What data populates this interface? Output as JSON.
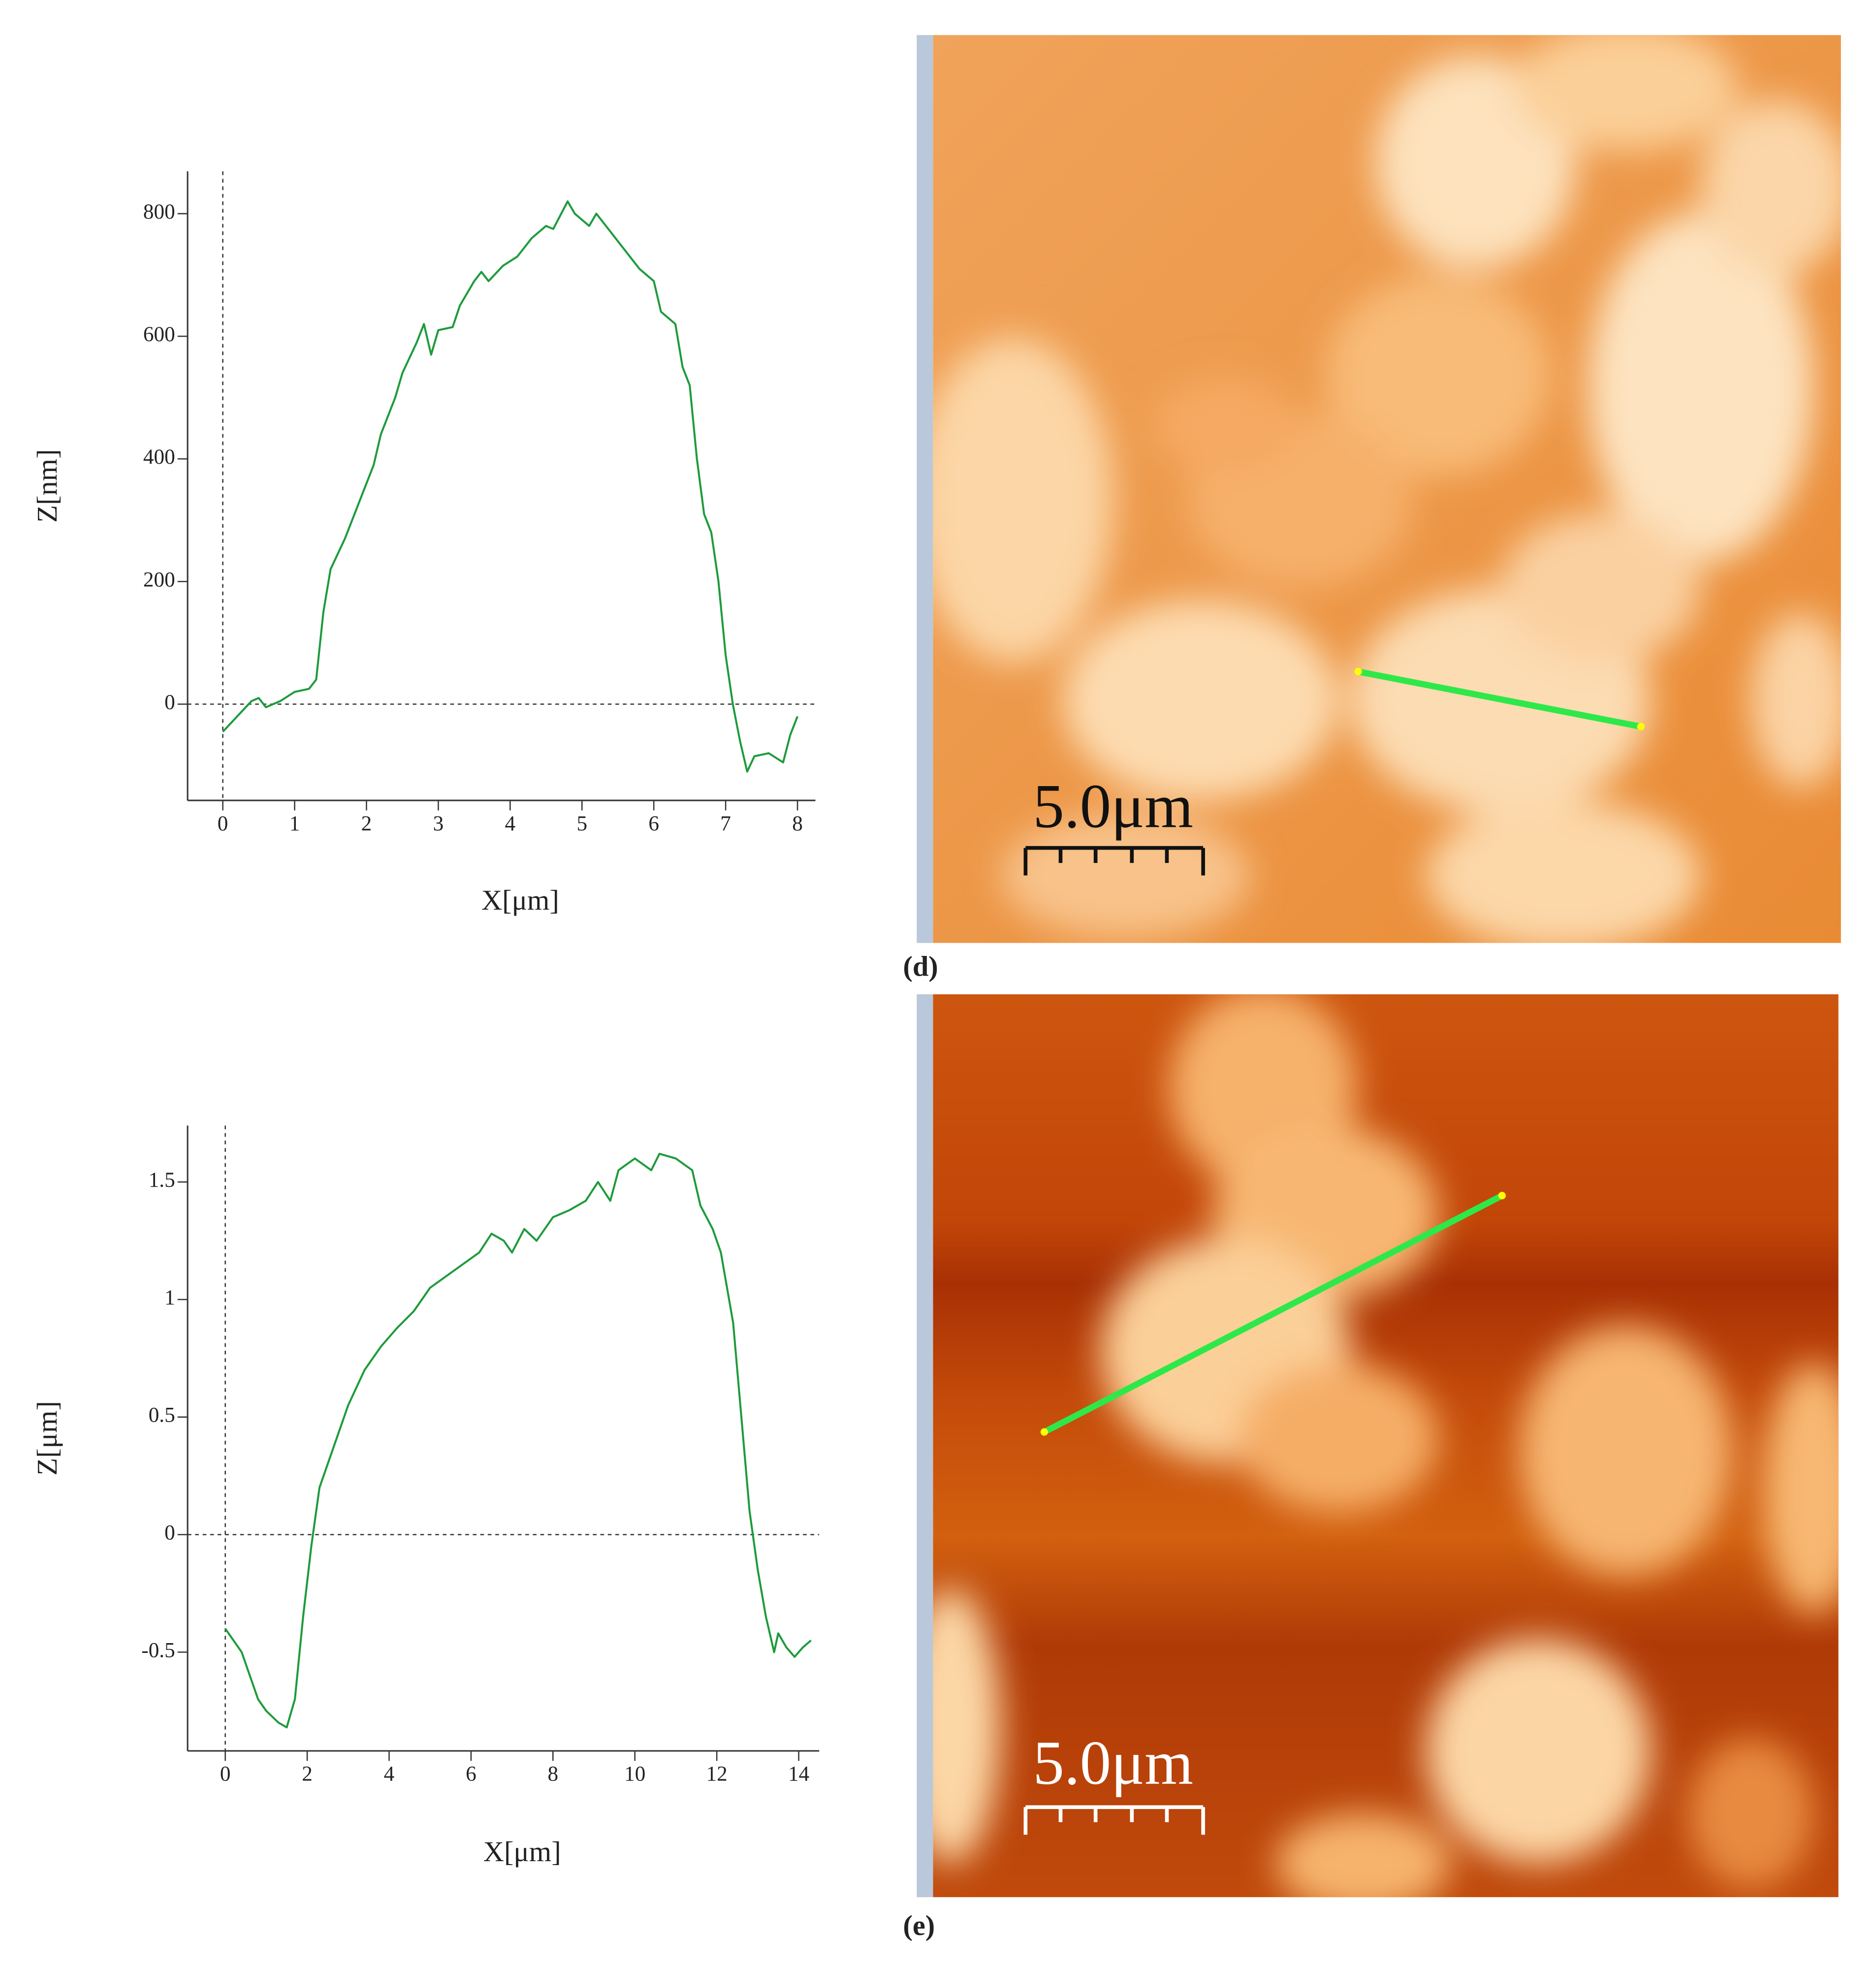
{
  "chart_data": [
    {
      "type": "line",
      "xlabel": "X[μm]",
      "ylabel": "Z[nm]",
      "xlim": [
        -0.49,
        8.25
      ],
      "ylim": [
        -157,
        869
      ],
      "xticks": [
        0,
        1,
        2,
        3,
        4,
        5,
        6,
        7,
        8
      ],
      "yticks": [
        0,
        200,
        400,
        600,
        800
      ],
      "origin_lines": true,
      "x": [
        0,
        0.2,
        0.4,
        0.5,
        0.6,
        0.8,
        1.0,
        1.2,
        1.3,
        1.4,
        1.5,
        1.7,
        1.9,
        2.1,
        2.2,
        2.4,
        2.5,
        2.7,
        2.8,
        2.9,
        3.0,
        3.2,
        3.3,
        3.5,
        3.6,
        3.7,
        3.9,
        4.1,
        4.3,
        4.5,
        4.6,
        4.8,
        4.9,
        5.1,
        5.2,
        5.4,
        5.6,
        5.8,
        6.0,
        6.1,
        6.3,
        6.4,
        6.5,
        6.6,
        6.7,
        6.8,
        6.9,
        7.0,
        7.1,
        7.2,
        7.3,
        7.4,
        7.6,
        7.8,
        7.9,
        8.0
      ],
      "series": [
        {
          "color": "#1e9b3c",
          "values": [
            -45,
            -20,
            5,
            10,
            -5,
            5,
            20,
            25,
            40,
            150,
            220,
            270,
            330,
            390,
            440,
            500,
            540,
            590,
            620,
            570,
            610,
            615,
            650,
            690,
            705,
            690,
            715,
            730,
            760,
            780,
            775,
            820,
            800,
            780,
            800,
            770,
            740,
            710,
            690,
            640,
            620,
            550,
            520,
            400,
            310,
            280,
            200,
            80,
            0,
            -60,
            -110,
            -85,
            -80,
            -95,
            -50,
            -20
          ]
        }
      ]
    },
    {
      "type": "line",
      "xlabel": "X[μm]",
      "ylabel": "Z[μm]",
      "xlim": [
        -0.92,
        14.5
      ],
      "ylim": [
        -0.92,
        1.74
      ],
      "xticks": [
        0,
        2,
        4,
        6,
        8,
        10,
        12,
        14
      ],
      "yticks": [
        -0.5,
        0,
        0.5,
        1,
        1.5
      ],
      "origin_lines": true,
      "x": [
        0,
        0.2,
        0.4,
        0.6,
        0.8,
        1.0,
        1.3,
        1.5,
        1.7,
        1.9,
        2.1,
        2.3,
        2.6,
        3.0,
        3.4,
        3.8,
        4.2,
        4.6,
        5.0,
        5.4,
        5.8,
        6.2,
        6.5,
        6.8,
        7.0,
        7.3,
        7.6,
        8.0,
        8.4,
        8.8,
        9.1,
        9.4,
        9.6,
        10.0,
        10.4,
        10.6,
        11.0,
        11.4,
        11.6,
        11.9,
        12.1,
        12.4,
        12.6,
        12.8,
        13.0,
        13.2,
        13.4,
        13.5,
        13.7,
        13.9,
        14.1,
        14.3
      ],
      "series": [
        {
          "color": "#1e9b3c",
          "values": [
            -0.4,
            -0.45,
            -0.5,
            -0.6,
            -0.7,
            -0.75,
            -0.8,
            -0.82,
            -0.7,
            -0.35,
            -0.05,
            0.2,
            0.35,
            0.55,
            0.7,
            0.8,
            0.88,
            0.95,
            1.05,
            1.1,
            1.15,
            1.2,
            1.28,
            1.25,
            1.2,
            1.3,
            1.25,
            1.35,
            1.38,
            1.42,
            1.5,
            1.42,
            1.55,
            1.6,
            1.55,
            1.62,
            1.6,
            1.55,
            1.4,
            1.3,
            1.2,
            0.9,
            0.5,
            0.1,
            -0.15,
            -0.35,
            -0.5,
            -0.42,
            -0.48,
            -0.52,
            -0.48,
            -0.45
          ]
        }
      ]
    }
  ],
  "images": [
    {
      "scale_bar": "5.0μm",
      "caption": "(d)"
    },
    {
      "scale_bar": "5.0μm",
      "caption": "(e)"
    }
  ]
}
